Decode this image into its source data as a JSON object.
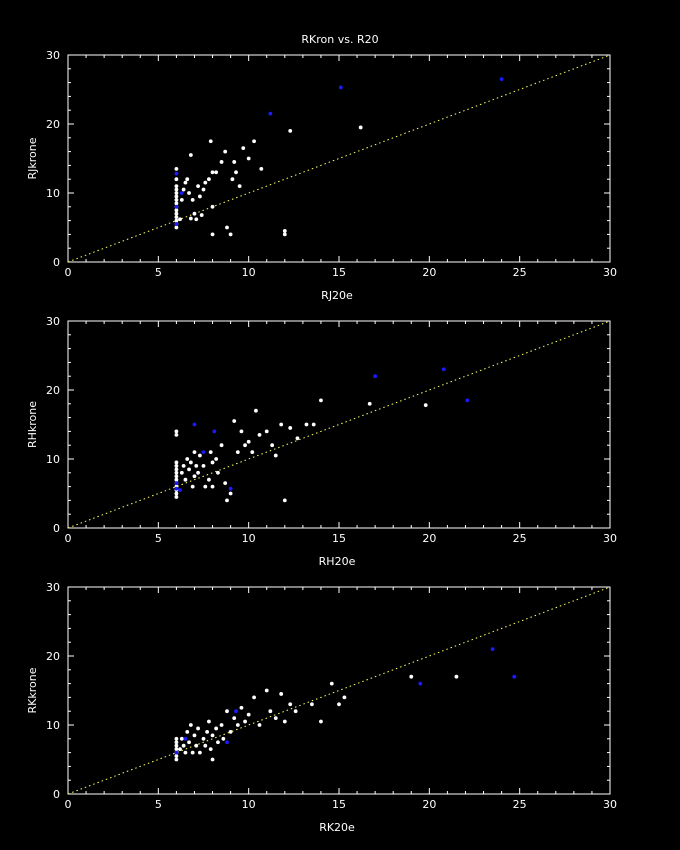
{
  "title": "RKron vs. R20",
  "colors": {
    "background": "#000000",
    "axes": "#ffffff",
    "white_points": "#ffffff",
    "blue_points": "#1a1aff",
    "reference_line": "#ffff66"
  },
  "chart_data": [
    {
      "type": "scatter",
      "xlabel": "RJ20e",
      "ylabel": "RJkrone",
      "xlim": [
        0,
        30
      ],
      "ylim": [
        0,
        30
      ],
      "xticks": [
        0,
        5,
        10,
        15,
        20,
        25,
        30
      ],
      "yticks": [
        0,
        10,
        20,
        30
      ],
      "reference_line": [
        [
          0,
          0
        ],
        [
          30,
          30
        ]
      ],
      "series": [
        {
          "color": "white",
          "points": [
            [
              6,
              5
            ],
            [
              6,
              5.5
            ],
            [
              6,
              6
            ],
            [
              6,
              6.5
            ],
            [
              6,
              7
            ],
            [
              6,
              7.5
            ],
            [
              6,
              8
            ],
            [
              6,
              8.5
            ],
            [
              6,
              9
            ],
            [
              6,
              9.5
            ],
            [
              6,
              10
            ],
            [
              6,
              10.5
            ],
            [
              6,
              11
            ],
            [
              6,
              12
            ],
            [
              6,
              13.5
            ],
            [
              6.2,
              6.2
            ],
            [
              6.3,
              9
            ],
            [
              6.4,
              10.5
            ],
            [
              6.5,
              11.5
            ],
            [
              6.6,
              12
            ],
            [
              6.7,
              10
            ],
            [
              6.8,
              15.5
            ],
            [
              6.8,
              6.3
            ],
            [
              6.9,
              9
            ],
            [
              7,
              7
            ],
            [
              7.1,
              6.2
            ],
            [
              7.2,
              11
            ],
            [
              7.3,
              9.5
            ],
            [
              7.4,
              6.8
            ],
            [
              7.5,
              10.5
            ],
            [
              7.6,
              11.5
            ],
            [
              7.8,
              12
            ],
            [
              7.9,
              17.5
            ],
            [
              8,
              8
            ],
            [
              8,
              4
            ],
            [
              8,
              13
            ],
            [
              8.2,
              13
            ],
            [
              8.5,
              14.5
            ],
            [
              8.7,
              16
            ],
            [
              8.8,
              5
            ],
            [
              9,
              4
            ],
            [
              9.1,
              12
            ],
            [
              9.2,
              14.5
            ],
            [
              9.3,
              13
            ],
            [
              9.5,
              11
            ],
            [
              9.7,
              16.5
            ],
            [
              10,
              15
            ],
            [
              10.3,
              17.5
            ],
            [
              10.7,
              13.5
            ],
            [
              12,
              4
            ],
            [
              12,
              4.5
            ],
            [
              12.3,
              19
            ],
            [
              16.2,
              19.5
            ]
          ]
        },
        {
          "color": "blue",
          "points": [
            [
              6,
              12.8
            ],
            [
              6,
              8
            ],
            [
              6,
              5.5
            ],
            [
              6.3,
              10
            ],
            [
              11.2,
              21.5
            ],
            [
              15.1,
              25.3
            ],
            [
              24,
              26.5
            ]
          ]
        }
      ]
    },
    {
      "type": "scatter",
      "xlabel": "RH20e",
      "ylabel": "RHkrone",
      "xlim": [
        0,
        30
      ],
      "ylim": [
        0,
        30
      ],
      "xticks": [
        0,
        5,
        10,
        15,
        20,
        25,
        30
      ],
      "yticks": [
        0,
        10,
        20,
        30
      ],
      "reference_line": [
        [
          0,
          0
        ],
        [
          30,
          30
        ]
      ],
      "series": [
        {
          "color": "white",
          "points": [
            [
              6,
              4.5
            ],
            [
              6,
              5
            ],
            [
              6,
              5.5
            ],
            [
              6,
              6
            ],
            [
              6,
              6.5
            ],
            [
              6,
              7
            ],
            [
              6,
              7.5
            ],
            [
              6,
              8
            ],
            [
              6,
              8.5
            ],
            [
              6,
              9
            ],
            [
              6,
              9.5
            ],
            [
              6,
              13.5
            ],
            [
              6,
              14
            ],
            [
              6.3,
              8
            ],
            [
              6.4,
              9
            ],
            [
              6.5,
              7
            ],
            [
              6.6,
              10
            ],
            [
              6.7,
              8.5
            ],
            [
              6.8,
              9.5
            ],
            [
              6.9,
              6
            ],
            [
              7,
              7.5
            ],
            [
              7,
              11
            ],
            [
              7.1,
              9
            ],
            [
              7.2,
              8
            ],
            [
              7.3,
              10.5
            ],
            [
              7.5,
              9
            ],
            [
              7.6,
              6
            ],
            [
              7.8,
              7
            ],
            [
              7.9,
              11
            ],
            [
              8,
              9.5
            ],
            [
              8,
              6
            ],
            [
              8.2,
              10
            ],
            [
              8.3,
              8
            ],
            [
              8.5,
              12
            ],
            [
              8.7,
              6.5
            ],
            [
              8.8,
              4
            ],
            [
              9,
              5
            ],
            [
              9.2,
              15.5
            ],
            [
              9.4,
              11
            ],
            [
              9.6,
              14
            ],
            [
              9.8,
              12
            ],
            [
              10,
              12.5
            ],
            [
              10.2,
              11
            ],
            [
              10.4,
              17
            ],
            [
              10.6,
              13.5
            ],
            [
              11,
              14
            ],
            [
              11.3,
              12
            ],
            [
              11.5,
              10.5
            ],
            [
              11.8,
              15
            ],
            [
              12,
              4
            ],
            [
              12.3,
              14.5
            ],
            [
              12.7,
              13
            ],
            [
              13.2,
              15
            ],
            [
              13.6,
              15
            ],
            [
              14,
              18.5
            ],
            [
              16.7,
              18
            ],
            [
              19.8,
              17.8
            ]
          ]
        },
        {
          "color": "blue",
          "points": [
            [
              6,
              6.5
            ],
            [
              6,
              5.7
            ],
            [
              6.2,
              5.5
            ],
            [
              7,
              15
            ],
            [
              7.5,
              11
            ],
            [
              8.1,
              14
            ],
            [
              9,
              5.7
            ],
            [
              17,
              22
            ],
            [
              20.8,
              23
            ],
            [
              22.1,
              18.5
            ]
          ]
        }
      ]
    },
    {
      "type": "scatter",
      "xlabel": "RK20e",
      "ylabel": "RKkrone",
      "xlim": [
        0,
        30
      ],
      "ylim": [
        0,
        30
      ],
      "xticks": [
        0,
        5,
        10,
        15,
        20,
        25,
        30
      ],
      "yticks": [
        0,
        10,
        20,
        30
      ],
      "reference_line": [
        [
          0,
          0
        ],
        [
          30,
          30
        ]
      ],
      "series": [
        {
          "color": "white",
          "points": [
            [
              6,
              5
            ],
            [
              6,
              5.5
            ],
            [
              6,
              6
            ],
            [
              6,
              6.5
            ],
            [
              6,
              7
            ],
            [
              6,
              7.5
            ],
            [
              6,
              8
            ],
            [
              6.2,
              6.5
            ],
            [
              6.3,
              8
            ],
            [
              6.4,
              7
            ],
            [
              6.5,
              6
            ],
            [
              6.6,
              9
            ],
            [
              6.7,
              7.5
            ],
            [
              6.8,
              10
            ],
            [
              6.9,
              6
            ],
            [
              7,
              8.5
            ],
            [
              7.1,
              7
            ],
            [
              7.2,
              9.5
            ],
            [
              7.3,
              6
            ],
            [
              7.5,
              8
            ],
            [
              7.6,
              7
            ],
            [
              7.7,
              9
            ],
            [
              7.8,
              10.5
            ],
            [
              7.9,
              6.5
            ],
            [
              8,
              5
            ],
            [
              8,
              8.5
            ],
            [
              8.2,
              9.5
            ],
            [
              8.3,
              7.5
            ],
            [
              8.5,
              10
            ],
            [
              8.6,
              8
            ],
            [
              8.8,
              12
            ],
            [
              9,
              9
            ],
            [
              9.2,
              11
            ],
            [
              9.4,
              10
            ],
            [
              9.6,
              12.5
            ],
            [
              9.8,
              10.5
            ],
            [
              10,
              11.5
            ],
            [
              10.3,
              14
            ],
            [
              10.6,
              10
            ],
            [
              11,
              15
            ],
            [
              11.2,
              12
            ],
            [
              11.5,
              11
            ],
            [
              11.8,
              14.5
            ],
            [
              12,
              10.5
            ],
            [
              12.3,
              13
            ],
            [
              12.6,
              12
            ],
            [
              13.5,
              13
            ],
            [
              14,
              10.5
            ],
            [
              14.6,
              16
            ],
            [
              15,
              13
            ],
            [
              15.3,
              14
            ],
            [
              19,
              17
            ],
            [
              21.5,
              17
            ]
          ]
        },
        {
          "color": "blue",
          "points": [
            [
              6,
              6
            ],
            [
              6.5,
              8
            ],
            [
              8.8,
              7.5
            ],
            [
              9.3,
              12
            ],
            [
              19.5,
              16
            ],
            [
              23.5,
              21
            ],
            [
              24.7,
              17
            ]
          ]
        }
      ]
    }
  ]
}
